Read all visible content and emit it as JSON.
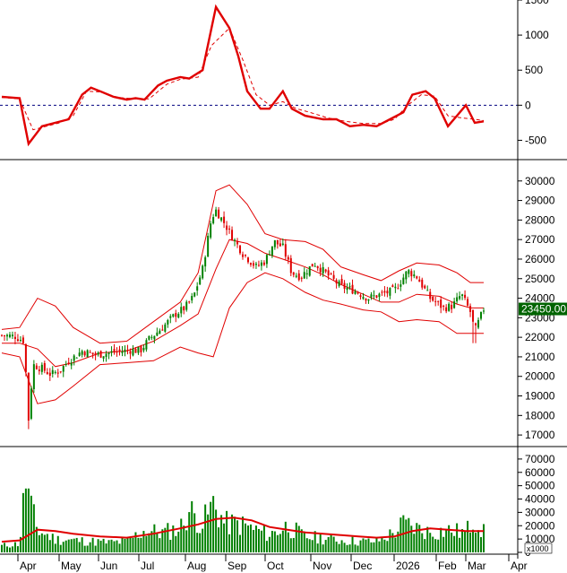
{
  "chart_data": [
    {
      "type": "line",
      "panel": "oscillator",
      "y_ticks": [
        1500,
        1000,
        500,
        0,
        -500
      ],
      "ylim": [
        -750,
        1500
      ],
      "reference_line": 0,
      "series": [
        {
          "color": "#e00000",
          "style": "solid",
          "points": [
            [
              0,
              120
            ],
            [
              20,
              100
            ],
            [
              30,
              -550
            ],
            [
              45,
              -300
            ],
            [
              60,
              -250
            ],
            [
              75,
              -200
            ],
            [
              90,
              150
            ],
            [
              100,
              250
            ],
            [
              110,
              200
            ],
            [
              125,
              120
            ],
            [
              140,
              80
            ],
            [
              150,
              100
            ],
            [
              160,
              80
            ],
            [
              175,
              280
            ],
            [
              185,
              350
            ],
            [
              200,
              400
            ],
            [
              210,
              380
            ],
            [
              225,
              500
            ],
            [
              240,
              1400
            ],
            [
              255,
              1100
            ],
            [
              265,
              700
            ],
            [
              275,
              200
            ],
            [
              290,
              -50
            ],
            [
              300,
              -50
            ],
            [
              315,
              200
            ],
            [
              325,
              -50
            ],
            [
              340,
              -150
            ],
            [
              360,
              -200
            ],
            [
              375,
              -200
            ],
            [
              390,
              -300
            ],
            [
              405,
              -280
            ],
            [
              420,
              -300
            ],
            [
              435,
              -200
            ],
            [
              450,
              -100
            ],
            [
              460,
              150
            ],
            [
              475,
              200
            ],
            [
              485,
              100
            ],
            [
              500,
              -300
            ],
            [
              510,
              -150
            ],
            [
              520,
              0
            ],
            [
              530,
              -250
            ],
            [
              540,
              -230
            ]
          ]
        },
        {
          "color": "#e00000",
          "style": "dashed",
          "points": [
            [
              0,
              110
            ],
            [
              20,
              90
            ],
            [
              35,
              -350
            ],
            [
              50,
              -300
            ],
            [
              65,
              -250
            ],
            [
              80,
              -150
            ],
            [
              95,
              200
            ],
            [
              110,
              190
            ],
            [
              130,
              110
            ],
            [
              150,
              90
            ],
            [
              165,
              90
            ],
            [
              185,
              300
            ],
            [
              200,
              370
            ],
            [
              220,
              400
            ],
            [
              235,
              850
            ],
            [
              255,
              1100
            ],
            [
              270,
              650
            ],
            [
              285,
              150
            ],
            [
              300,
              0
            ],
            [
              315,
              50
            ],
            [
              330,
              -50
            ],
            [
              345,
              -100
            ],
            [
              365,
              -180
            ],
            [
              385,
              -230
            ],
            [
              405,
              -260
            ],
            [
              425,
              -260
            ],
            [
              440,
              -200
            ],
            [
              455,
              0
            ],
            [
              470,
              150
            ],
            [
              485,
              130
            ],
            [
              500,
              -150
            ],
            [
              515,
              -180
            ],
            [
              530,
              -200
            ],
            [
              540,
              -220
            ]
          ]
        }
      ]
    },
    {
      "type": "candlestick",
      "panel": "price",
      "last_price_label": "23450.00",
      "y_ticks": [
        30000,
        29000,
        28000,
        27000,
        26000,
        25000,
        24000,
        23000,
        22000,
        21000,
        20000,
        19000,
        18000,
        17000
      ],
      "ylim": [
        16500,
        31000
      ],
      "up_color": "#008000",
      "down_color": "#e00000",
      "close": [
        [
          0,
          22100
        ],
        [
          15,
          22050
        ],
        [
          25,
          21800
        ],
        [
          30,
          17800
        ],
        [
          35,
          20600
        ],
        [
          45,
          20400
        ],
        [
          55,
          20100
        ],
        [
          65,
          20300
        ],
        [
          75,
          20800
        ],
        [
          90,
          21300
        ],
        [
          105,
          21100
        ],
        [
          120,
          21200
        ],
        [
          135,
          21300
        ],
        [
          145,
          21350
        ],
        [
          155,
          21300
        ],
        [
          165,
          21900
        ],
        [
          180,
          22500
        ],
        [
          195,
          23200
        ],
        [
          205,
          23500
        ],
        [
          215,
          24100
        ],
        [
          225,
          25500
        ],
        [
          235,
          28100
        ],
        [
          240,
          28500
        ],
        [
          250,
          27800
        ],
        [
          260,
          27000
        ],
        [
          270,
          26300
        ],
        [
          285,
          25600
        ],
        [
          295,
          25900
        ],
        [
          305,
          26900
        ],
        [
          315,
          26600
        ],
        [
          325,
          25300
        ],
        [
          335,
          25100
        ],
        [
          350,
          25800
        ],
        [
          365,
          25200
        ],
        [
          380,
          24600
        ],
        [
          395,
          24400
        ],
        [
          410,
          24000
        ],
        [
          425,
          24200
        ],
        [
          440,
          24400
        ],
        [
          455,
          25400
        ],
        [
          465,
          25100
        ],
        [
          480,
          24000
        ],
        [
          495,
          23500
        ],
        [
          505,
          23600
        ],
        [
          515,
          24200
        ],
        [
          525,
          23300
        ],
        [
          530,
          22300
        ],
        [
          540,
          23450
        ]
      ],
      "bands": [
        {
          "color": "#e00000",
          "points": [
            [
              0,
              22400
            ],
            [
              20,
              22500
            ],
            [
              40,
              24000
            ],
            [
              60,
              23600
            ],
            [
              80,
              22500
            ],
            [
              110,
              21700
            ],
            [
              140,
              21800
            ],
            [
              170,
              22800
            ],
            [
              200,
              23800
            ],
            [
              220,
              25300
            ],
            [
              240,
              29500
            ],
            [
              255,
              29800
            ],
            [
              275,
              28800
            ],
            [
              295,
              27300
            ],
            [
              315,
              27000
            ],
            [
              340,
              26900
            ],
            [
              360,
              26500
            ],
            [
              380,
              25600
            ],
            [
              405,
              25200
            ],
            [
              425,
              24900
            ],
            [
              445,
              25400
            ],
            [
              465,
              25800
            ],
            [
              490,
              25700
            ],
            [
              510,
              25300
            ],
            [
              525,
              24800
            ],
            [
              540,
              24800
            ]
          ]
        },
        {
          "color": "#e00000",
          "points": [
            [
              0,
              21700
            ],
            [
              20,
              21700
            ],
            [
              40,
              21400
            ],
            [
              60,
              20500
            ],
            [
              80,
              20700
            ],
            [
              110,
              21200
            ],
            [
              140,
              21300
            ],
            [
              170,
              21800
            ],
            [
              200,
              22600
            ],
            [
              220,
              23200
            ],
            [
              240,
              25500
            ],
            [
              255,
              27000
            ],
            [
              275,
              26800
            ],
            [
              295,
              26300
            ],
            [
              315,
              26000
            ],
            [
              340,
              25600
            ],
            [
              360,
              25200
            ],
            [
              380,
              24700
            ],
            [
              405,
              24200
            ],
            [
              425,
              23800
            ],
            [
              445,
              23800
            ],
            [
              465,
              24200
            ],
            [
              490,
              24100
            ],
            [
              510,
              23700
            ],
            [
              525,
              23500
            ],
            [
              540,
              23500
            ]
          ]
        },
        {
          "color": "#e00000",
          "points": [
            [
              0,
              21200
            ],
            [
              20,
              21000
            ],
            [
              40,
              18600
            ],
            [
              60,
              18800
            ],
            [
              80,
              19500
            ],
            [
              110,
              20600
            ],
            [
              140,
              20700
            ],
            [
              170,
              20800
            ],
            [
              200,
              21500
            ],
            [
              220,
              21200
            ],
            [
              237,
              21000
            ],
            [
              255,
              23500
            ],
            [
              275,
              24800
            ],
            [
              295,
              25300
            ],
            [
              315,
              25000
            ],
            [
              340,
              24300
            ],
            [
              360,
              23900
            ],
            [
              380,
              23700
            ],
            [
              405,
              23400
            ],
            [
              425,
              23300
            ],
            [
              445,
              22800
            ],
            [
              465,
              22900
            ],
            [
              490,
              22800
            ],
            [
              510,
              22200
            ],
            [
              525,
              22200
            ],
            [
              540,
              22200
            ]
          ]
        }
      ]
    },
    {
      "type": "bar",
      "panel": "volume",
      "unit_label": "x1000",
      "y_ticks": [
        70000,
        60000,
        50000,
        40000,
        30000,
        20000,
        10000,
        0
      ],
      "ylim": [
        0,
        78000
      ],
      "bar_color": "#008000",
      "ma_color": "#e00000",
      "volume_profile": [
        [
          0,
          6000
        ],
        [
          20,
          8000
        ],
        [
          27,
          68000
        ],
        [
          32,
          42000
        ],
        [
          40,
          20000
        ],
        [
          60,
          12000
        ],
        [
          80,
          11000
        ],
        [
          100,
          10000
        ],
        [
          120,
          9000
        ],
        [
          140,
          10000
        ],
        [
          160,
          20000
        ],
        [
          180,
          18000
        ],
        [
          200,
          22000
        ],
        [
          210,
          38000
        ],
        [
          225,
          26000
        ],
        [
          237,
          44000
        ],
        [
          250,
          26000
        ],
        [
          265,
          26000
        ],
        [
          280,
          22000
        ],
        [
          300,
          16000
        ],
        [
          320,
          24000
        ],
        [
          340,
          14000
        ],
        [
          360,
          13000
        ],
        [
          380,
          11000
        ],
        [
          400,
          10000
        ],
        [
          420,
          10000
        ],
        [
          440,
          18000
        ],
        [
          450,
          26000
        ],
        [
          465,
          22000
        ],
        [
          480,
          18000
        ],
        [
          500,
          20000
        ],
        [
          520,
          18000
        ],
        [
          530,
          32000
        ],
        [
          540,
          18000
        ]
      ],
      "ma": [
        [
          0,
          8000
        ],
        [
          20,
          9000
        ],
        [
          40,
          17000
        ],
        [
          60,
          16000
        ],
        [
          80,
          14000
        ],
        [
          110,
          12000
        ],
        [
          140,
          11000
        ],
        [
          170,
          14000
        ],
        [
          200,
          18000
        ],
        [
          220,
          21000
        ],
        [
          240,
          25000
        ],
        [
          260,
          26000
        ],
        [
          280,
          24000
        ],
        [
          300,
          19000
        ],
        [
          320,
          17000
        ],
        [
          340,
          15000
        ],
        [
          360,
          14000
        ],
        [
          380,
          13000
        ],
        [
          400,
          12000
        ],
        [
          420,
          11000
        ],
        [
          440,
          12000
        ],
        [
          460,
          16000
        ],
        [
          480,
          18000
        ],
        [
          500,
          17000
        ],
        [
          520,
          16000
        ],
        [
          540,
          16000
        ]
      ]
    }
  ],
  "x_axis": {
    "labels": [
      "Apr",
      "May",
      "Jun",
      "Jul",
      "Aug",
      "Sep",
      "Oct",
      "Nov",
      "Dec",
      "2026",
      "Feb",
      "Mar",
      "Apr"
    ]
  }
}
